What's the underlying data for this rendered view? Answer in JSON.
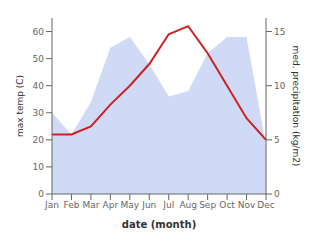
{
  "chart_data": {
    "type": "line",
    "x_label": "date (month)",
    "y_label": "max temp (C)",
    "y2_label": "med. precipitation (kg/m2)",
    "categories": [
      "Jan",
      "Feb",
      "Mar",
      "Apr",
      "May",
      "Jun",
      "Jul",
      "Aug",
      "Sep",
      "Oct",
      "Nov",
      "Dec"
    ],
    "series": [
      {
        "type": "area",
        "axis": "y2",
        "color": "#aabbee",
        "values": [
          7.5,
          5.5,
          8.5,
          13.5,
          14.5,
          12,
          9,
          9.5,
          13,
          14.5,
          14.5,
          4.5
        ]
      },
      {
        "type": "line",
        "color": "#cc2222",
        "values": [
          22,
          22,
          25,
          33,
          40,
          48,
          59,
          62,
          52,
          40,
          28,
          20
        ]
      }
    ],
    "ylim": [
      0,
      65
    ],
    "yticks": [
      0,
      10,
      20,
      30,
      40,
      50,
      60
    ],
    "y2lim": [
      0,
      16.25
    ],
    "y2ticks": [
      0,
      5,
      10,
      15
    ],
    "grid": false
  }
}
